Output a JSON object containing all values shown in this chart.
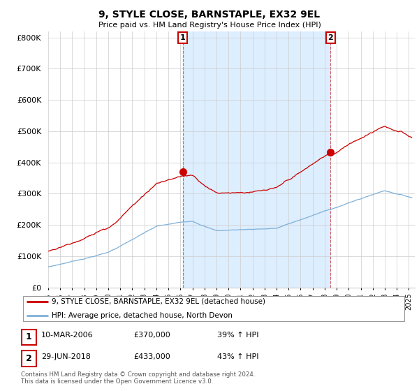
{
  "title": "9, STYLE CLOSE, BARNSTAPLE, EX32 9EL",
  "subtitle": "Price paid vs. HM Land Registry's House Price Index (HPI)",
  "ylabel_ticks": [
    "£0",
    "£100K",
    "£200K",
    "£300K",
    "£400K",
    "£500K",
    "£600K",
    "£700K",
    "£800K"
  ],
  "ytick_values": [
    0,
    100000,
    200000,
    300000,
    400000,
    500000,
    600000,
    700000,
    800000
  ],
  "ylim": [
    0,
    820000
  ],
  "xlim_start": 1995.0,
  "xlim_end": 2025.5,
  "transaction1": {
    "date_num": 2006.19,
    "price": 370000,
    "label": "1",
    "pct": "39%",
    "date_str": "10-MAR-2006"
  },
  "transaction2": {
    "date_num": 2018.49,
    "price": 433000,
    "label": "2",
    "pct": "43%",
    "date_str": "29-JUN-2018"
  },
  "property_color": "#cc0000",
  "hpi_color": "#7fb0d8",
  "shade_color": "#ddeeff",
  "legend_property": "9, STYLE CLOSE, BARNSTAPLE, EX32 9EL (detached house)",
  "legend_hpi": "HPI: Average price, detached house, North Devon",
  "footer": "Contains HM Land Registry data © Crown copyright and database right 2024.\nThis data is licensed under the Open Government Licence v3.0.",
  "table_rows": [
    {
      "num": "1",
      "date": "10-MAR-2006",
      "price": "£370,000",
      "change": "39% ↑ HPI"
    },
    {
      "num": "2",
      "date": "29-JUN-2018",
      "price": "£433,000",
      "change": "43% ↑ HPI"
    }
  ]
}
